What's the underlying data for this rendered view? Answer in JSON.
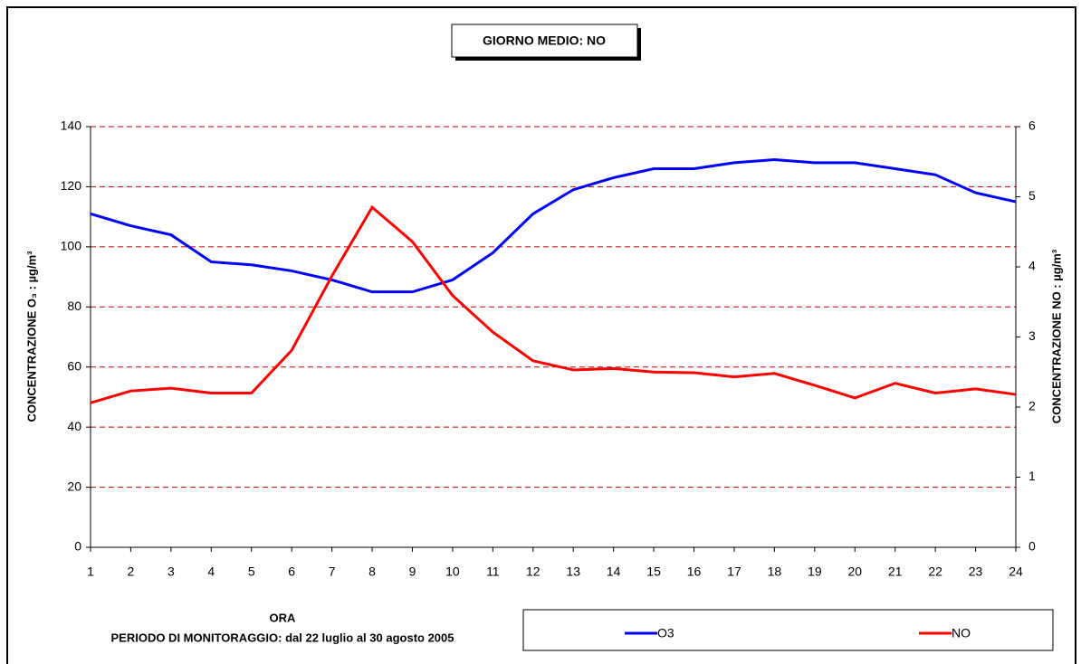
{
  "chart_data": {
    "type": "line",
    "title": "GIORNO MEDIO: NO",
    "x_label": "ORA",
    "subtitle": "PERIODO DI MONITORAGGIO: dal 22 luglio al 30 agosto 2005",
    "y_label": "CONCENTRAZIONE O₃ : µg/m³",
    "y2_label": "CONCENTRAZIONE NO : µg/m³",
    "categories": [
      1,
      2,
      3,
      4,
      5,
      6,
      7,
      8,
      9,
      10,
      11,
      12,
      13,
      14,
      15,
      16,
      17,
      18,
      19,
      20,
      21,
      22,
      23,
      24
    ],
    "series": [
      {
        "name": "O3",
        "color": "#0000ff",
        "values": [
          111,
          107,
          104,
          95,
          94,
          92,
          89,
          85,
          85,
          89,
          98,
          111,
          119,
          123,
          126,
          126,
          128,
          129,
          128,
          128,
          126,
          124,
          118,
          115
        ]
      },
      {
        "name": "NO",
        "color": "#ff0000",
        "axis": "y2",
        "values": [
          2.06,
          2.23,
          2.27,
          2.2,
          2.2,
          2.81,
          3.87,
          4.85,
          4.36,
          3.59,
          3.07,
          2.66,
          2.53,
          2.55,
          2.5,
          2.49,
          2.43,
          2.48,
          2.31,
          2.13,
          2.34,
          2.2,
          2.26,
          2.18
        ]
      }
    ],
    "ylim": [
      0,
      140
    ],
    "yticks": [
      0,
      20,
      40,
      60,
      80,
      100,
      120,
      140
    ],
    "y2lim": [
      0,
      6
    ],
    "y2ticks": [
      0,
      1,
      2,
      3,
      4,
      5,
      6
    ],
    "grid": true,
    "grid_color": "#c00000"
  }
}
